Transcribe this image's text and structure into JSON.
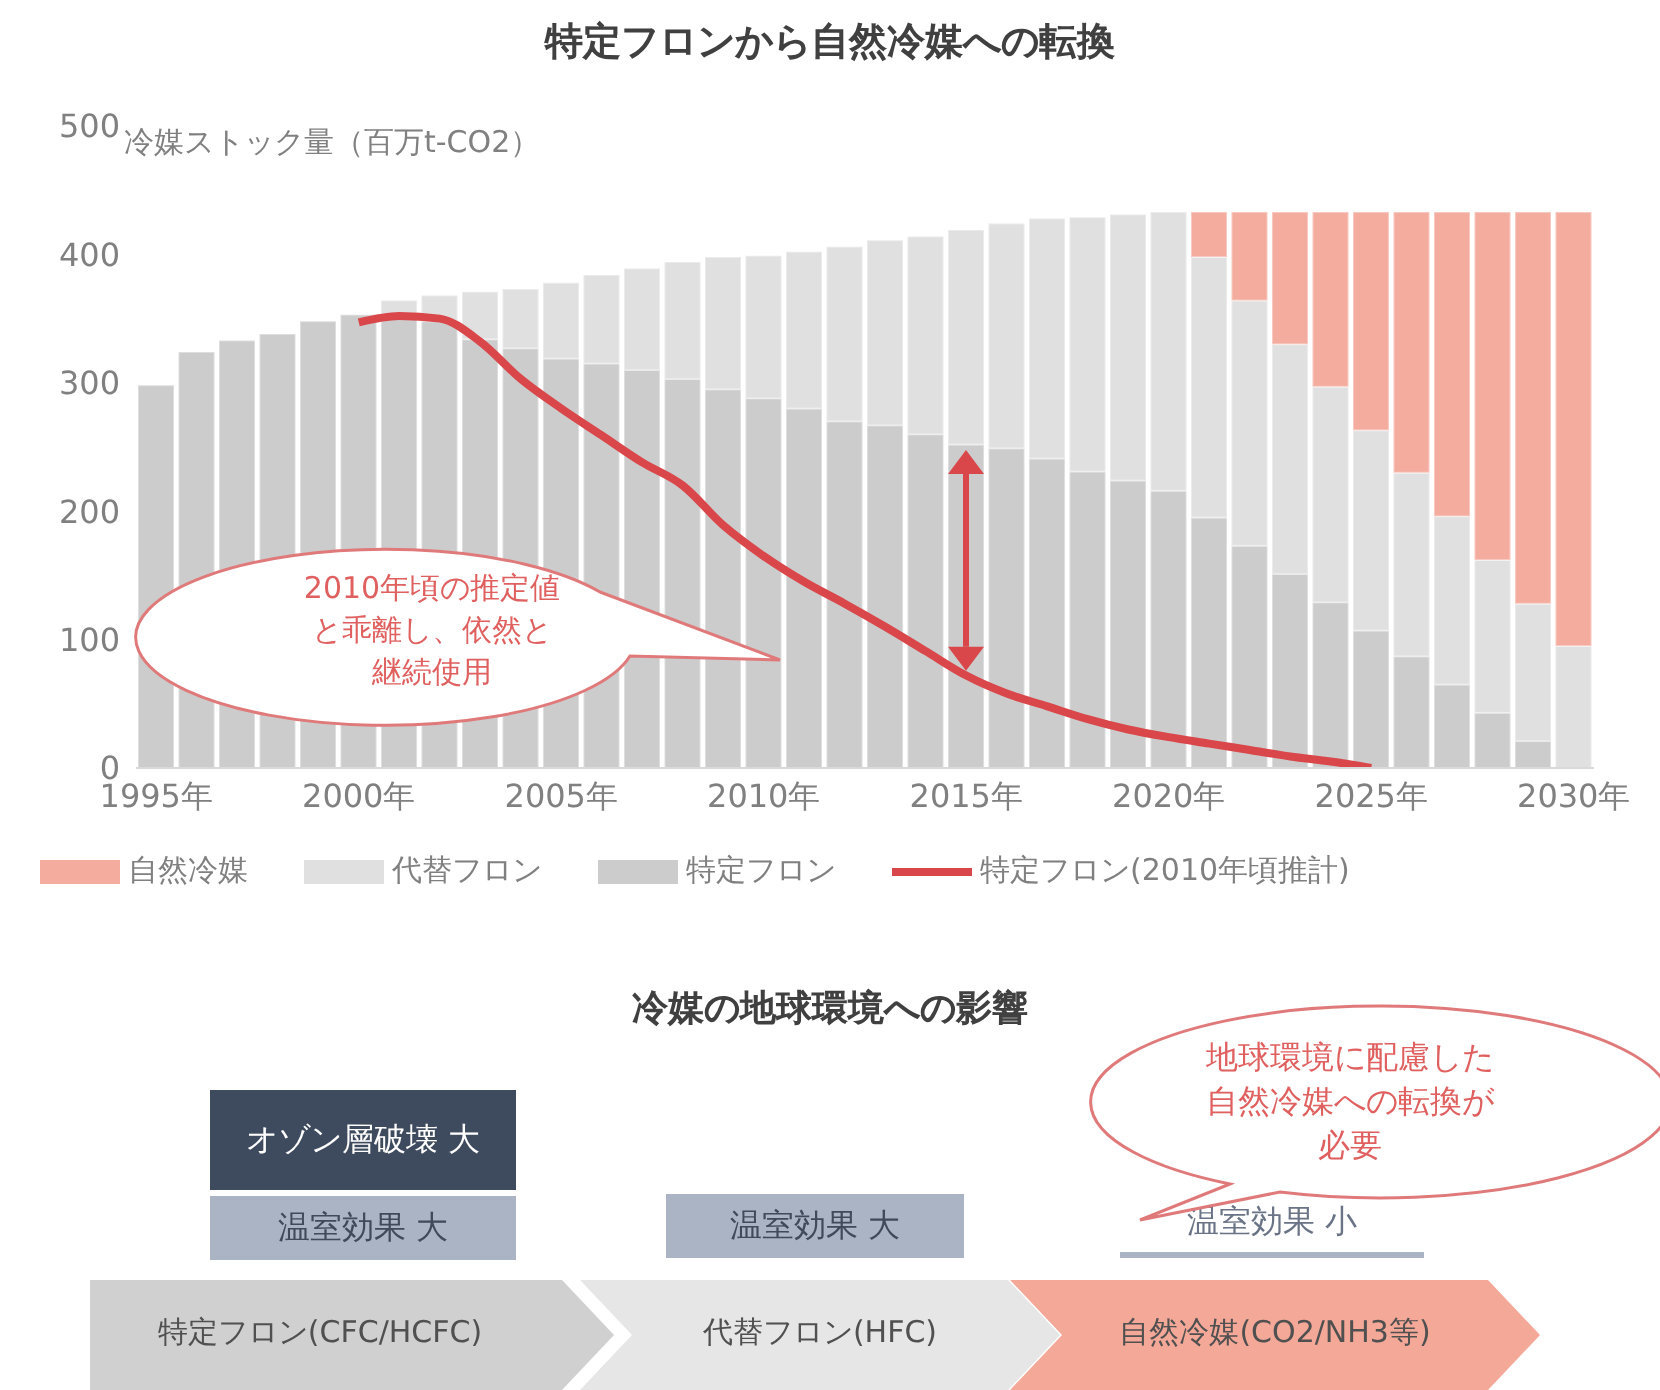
{
  "chart_data": [
    {
      "type": "bar",
      "title": "特定フロンから自然冷媒への転換",
      "ylabel": "冷媒ストック量（百万t-CO2）",
      "stacked": true,
      "categories": [
        "1995年",
        null,
        null,
        null,
        null,
        "2000年",
        null,
        null,
        null,
        null,
        "2005年",
        null,
        null,
        null,
        null,
        "2010年",
        null,
        null,
        null,
        null,
        "2015年",
        null,
        null,
        null,
        null,
        "2020年",
        null,
        null,
        null,
        null,
        "2025年",
        null,
        null,
        null,
        null,
        "2030年"
      ],
      "series": [
        {
          "name": "特定フロン",
          "color": "#cccccc",
          "values": [
            298,
            324,
            333,
            338,
            348,
            353,
            352,
            348,
            334,
            327,
            319,
            315,
            310,
            303,
            295,
            288,
            280,
            270,
            267,
            260,
            252,
            249,
            241,
            231,
            224,
            216,
            195,
            173,
            151,
            129,
            107,
            87,
            65,
            43,
            21,
            0
          ]
        },
        {
          "name": "代替フロン",
          "color": "#e0e0e0",
          "values": [
            0,
            0,
            0,
            0,
            0,
            0,
            12,
            20,
            37,
            46,
            59,
            69,
            79,
            91,
            103,
            111,
            122,
            136,
            144,
            154,
            167,
            175,
            187,
            198,
            207,
            217,
            203,
            191,
            179,
            168,
            156,
            143,
            131,
            119,
            107,
            95
          ]
        },
        {
          "name": "自然冷媒",
          "color": "#f4ac9f",
          "values": [
            0,
            0,
            0,
            0,
            0,
            0,
            0,
            0,
            0,
            0,
            0,
            0,
            0,
            0,
            0,
            0,
            0,
            0,
            0,
            0,
            0,
            0,
            0,
            0,
            0,
            0,
            35,
            69,
            103,
            136,
            170,
            203,
            237,
            271,
            305,
            338
          ]
        },
        {
          "name": "特定フロン(2010年頃推計)",
          "type": "line",
          "color": "#d9474a",
          "values": [
            null,
            null,
            null,
            null,
            null,
            347,
            352,
            350,
            332,
            303,
            280,
            259,
            238,
            220,
            189,
            165,
            145,
            128,
            110,
            91,
            72,
            58,
            48,
            38,
            30,
            24,
            19,
            14,
            9,
            5,
            0,
            null,
            null,
            null,
            null,
            null
          ]
        }
      ],
      "ylim": [
        0,
        500
      ],
      "yticks": [
        0,
        100,
        200,
        300,
        400,
        500
      ],
      "legend": "bottom",
      "marker": "none",
      "annotations": [
        "2010年頃の推定値と乖離し、依然と継続使用"
      ]
    },
    {
      "type": "other",
      "title": "冷媒の地球環境への影響",
      "annotations": [
        "オゾン層破壊 大",
        "温室効果 大",
        "温室効果 大",
        "温室効果 小",
        "特定フロン(CFC/HCFC)",
        "代替フロン(HFC)",
        "自然冷媒(CO2/NH3等)",
        "地球環境に配慮した自然冷媒への転換が必要"
      ]
    }
  ]
}
